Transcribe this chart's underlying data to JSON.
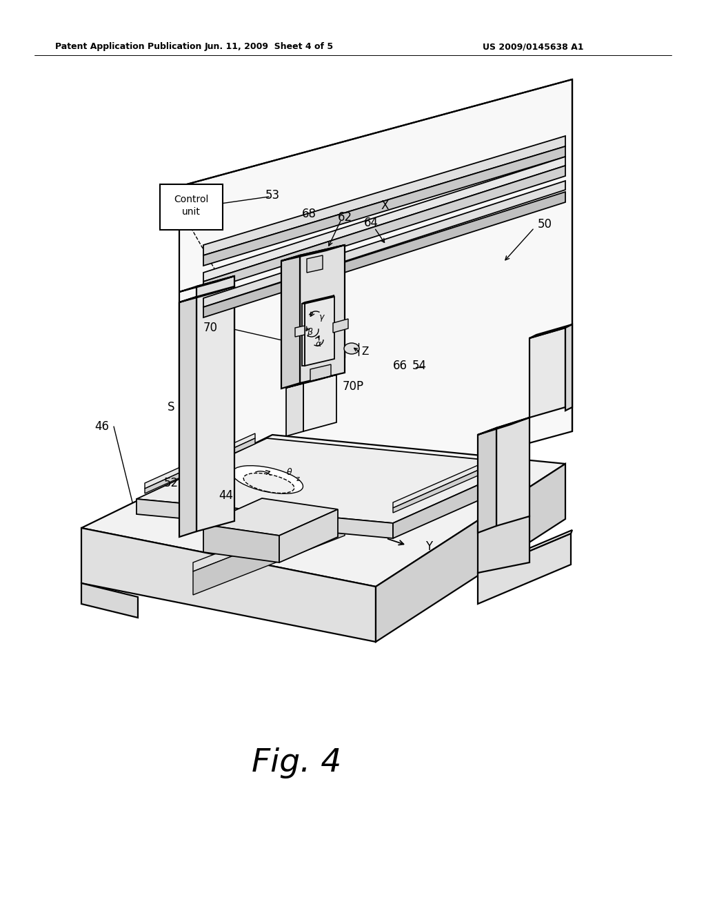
{
  "bg_color": "#ffffff",
  "header_left": "Patent Application Publication",
  "header_mid": "Jun. 11, 2009  Sheet 4 of 5",
  "header_right": "US 2009/0145638 A1",
  "fig_label": "Fig. 4",
  "lw_main": 1.6,
  "lw_thin": 1.0,
  "lw_med": 1.3
}
